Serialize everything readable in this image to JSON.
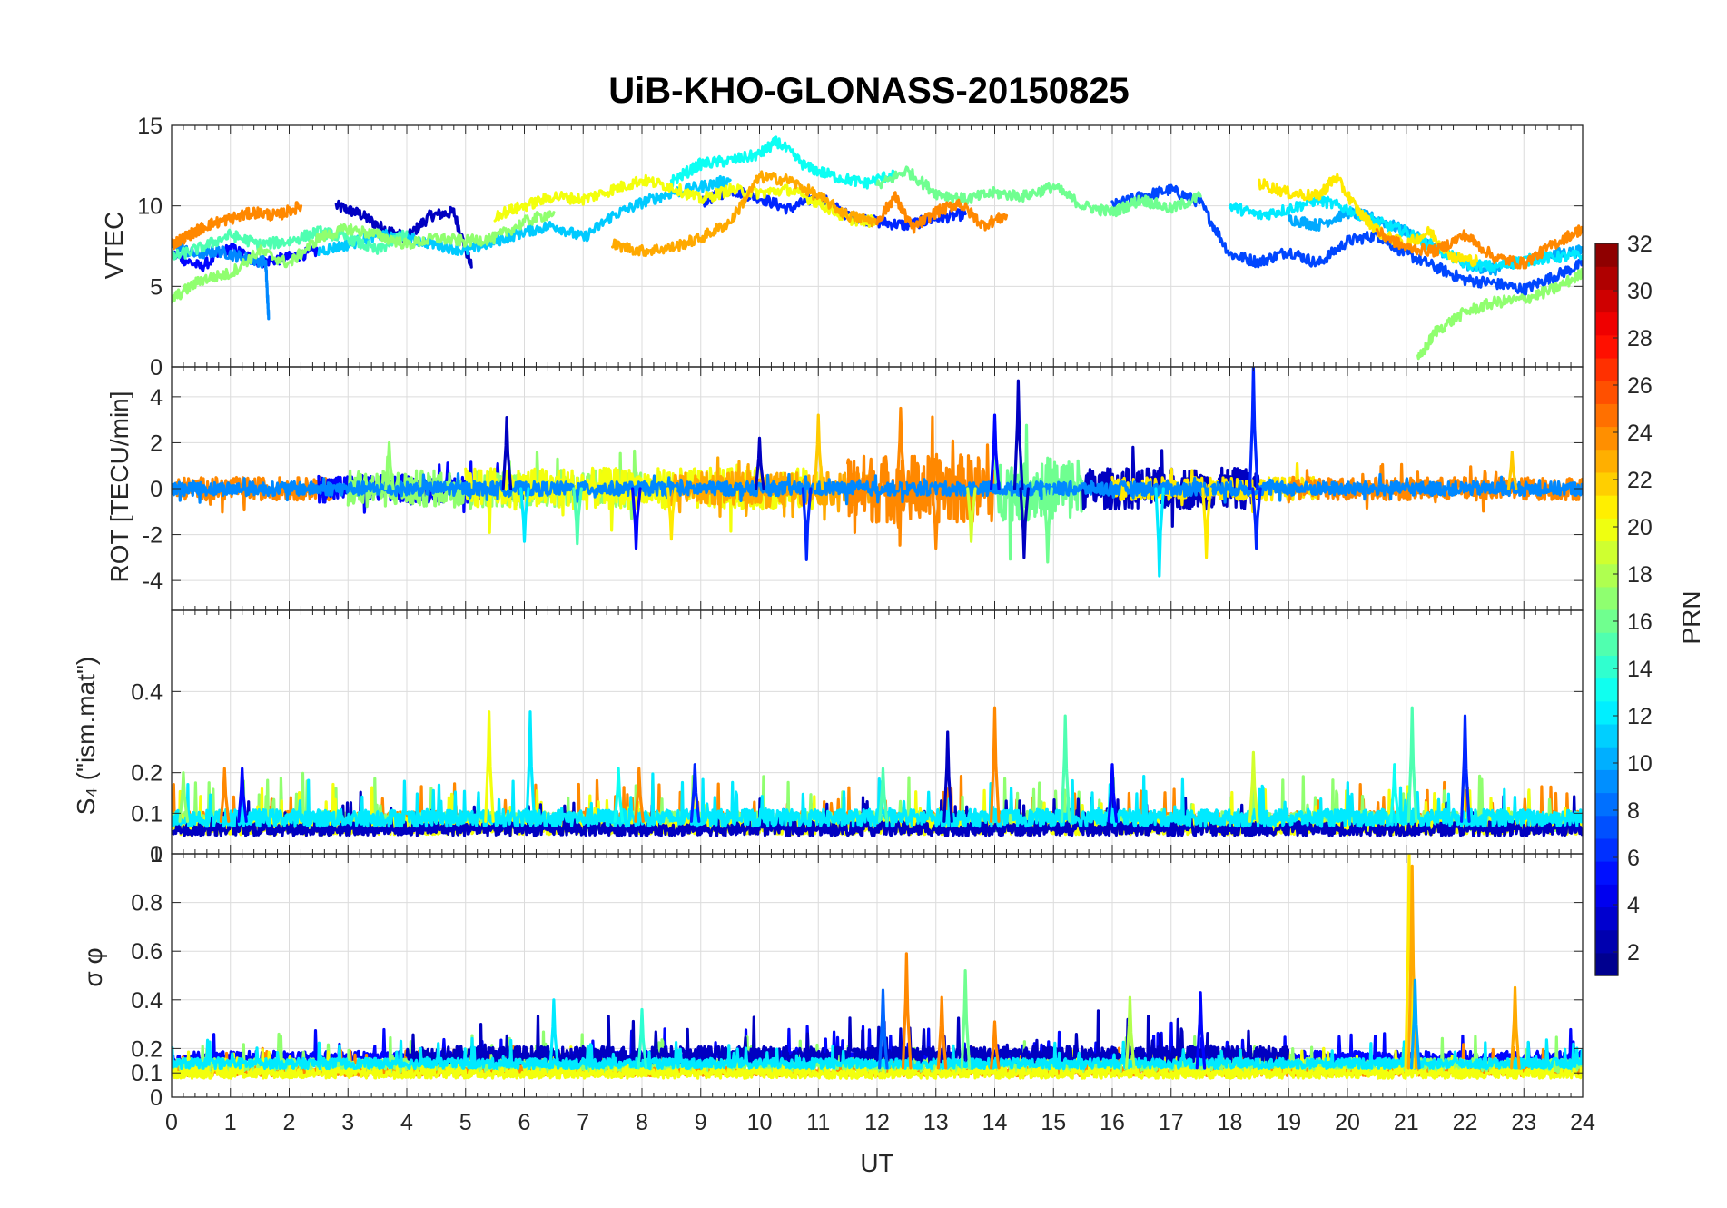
{
  "chart_data": {
    "type": "line",
    "title": "UiB-KHO-GLONASS-20150825",
    "xlabel": "UT",
    "xlim": [
      0,
      24
    ],
    "xticks": [
      "0",
      "1",
      "2",
      "3",
      "4",
      "5",
      "6",
      "7",
      "8",
      "9",
      "10",
      "11",
      "12",
      "13",
      "14",
      "15",
      "16",
      "17",
      "18",
      "19",
      "20",
      "21",
      "22",
      "23",
      "24"
    ],
    "series_note": "Each GLONASS PRN is drawn as one coloured trace per panel, colour given by the PRN colorbar.",
    "panels": [
      {
        "name": "vtec",
        "ylabel": "VTEC",
        "ylim": [
          0,
          15
        ],
        "yticks": [
          "0",
          "5",
          "10",
          "15"
        ],
        "tracks": [
          {
            "prn": 3,
            "x": [
              2.8,
              3.2,
              3.6,
              4.0,
              4.4,
              4.8,
              5.1
            ],
            "y": [
              10,
              9.5,
              8.6,
              8.0,
              9.4,
              9.6,
              6.2
            ]
          },
          {
            "prn": 5,
            "x": [
              0,
              0.5,
              1.0,
              1.5,
              2.0,
              2.5
            ],
            "y": [
              7.0,
              6.2,
              7.4,
              6.5,
              6.8,
              7.2
            ]
          },
          {
            "prn": 6,
            "x": [
              9.0,
              9.5,
              10,
              10.5,
              11,
              11.5,
              12,
              12.5,
              13,
              13.5
            ],
            "y": [
              10.2,
              11.0,
              10.5,
              9.8,
              10.6,
              9.4,
              9.0,
              8.8,
              9.2,
              9.5
            ]
          },
          {
            "prn": 7,
            "x": [
              16,
              16.5,
              17,
              17.5,
              18,
              18.5,
              19,
              19.5,
              20,
              20.5,
              21,
              21.5,
              22,
              22.5,
              23,
              23.5,
              24
            ],
            "y": [
              10.0,
              10.6,
              11.0,
              10.2,
              7.0,
              6.5,
              7.2,
              6.4,
              7.8,
              8.2,
              7.0,
              6.2,
              5.4,
              5.2,
              4.8,
              5.6,
              6.4
            ]
          },
          {
            "prn": 9,
            "x": [
              0,
              0.4,
              0.8,
              1.2,
              1.6,
              1.65
            ],
            "y": [
              7.6,
              7.0,
              7.2,
              6.8,
              6.5,
              3.0
            ]
          },
          {
            "prn": 10,
            "x": [
              19,
              19.5,
              20,
              20.5,
              21,
              21.5,
              22,
              22.5,
              23,
              23.5,
              24
            ],
            "y": [
              9.2,
              8.8,
              9.6,
              9.2,
              8.4,
              7.4,
              6.4,
              6.0,
              6.6,
              7.0,
              7.2
            ]
          },
          {
            "prn": 11,
            "x": [
              2.5,
              3.0,
              3.5,
              4.0,
              4.5,
              5.0,
              5.5,
              6.0,
              6.5,
              7.0,
              7.5,
              8.0,
              8.5,
              9.0,
              9.5
            ],
            "y": [
              7.2,
              7.6,
              8.2,
              8.0,
              7.6,
              7.2,
              7.8,
              8.4,
              8.8,
              8.0,
              9.4,
              10.2,
              10.8,
              11.2,
              11.6
            ]
          },
          {
            "prn": 12,
            "x": [
              18,
              18.5,
              19,
              19.5,
              20,
              20.5,
              21,
              21.5,
              22,
              22.5,
              23,
              23.5,
              24
            ],
            "y": [
              10.0,
              9.4,
              9.8,
              10.4,
              9.8,
              9.0,
              8.4,
              7.4,
              6.4,
              6.2,
              6.6,
              6.8,
              6.9
            ]
          },
          {
            "prn": 13,
            "x": [
              8.5,
              9.0,
              9.5,
              10,
              10.3,
              10.8,
              11.3,
              11.8,
              12.3
            ],
            "y": [
              11.5,
              12.6,
              12.8,
              13.2,
              14.0,
              12.4,
              11.8,
              11.4,
              12.0
            ]
          },
          {
            "prn": 15,
            "x": [
              0,
              0.5,
              1.0,
              1.5,
              2.0,
              2.5,
              3.0,
              3.5,
              4.0
            ],
            "y": [
              6.8,
              7.4,
              8.2,
              7.6,
              7.8,
              8.4,
              8.0,
              7.2,
              8.4
            ]
          },
          {
            "prn": 16,
            "x": [
              12,
              12.5,
              13,
              13.5,
              14,
              14.5,
              15,
              15.5,
              16,
              16.5,
              17,
              17.5
            ],
            "y": [
              11.2,
              12.2,
              10.8,
              10.4,
              10.8,
              10.6,
              11.2,
              10.0,
              9.6,
              10.4,
              9.8,
              10.6
            ]
          },
          {
            "prn": 17,
            "x": [
              0,
              0.5,
              1.0,
              1.5,
              2.0,
              2.5,
              3.0,
              3.5,
              4.0,
              4.5,
              5.0,
              5.5,
              6.0,
              6.5
            ],
            "y": [
              4.2,
              5.4,
              5.8,
              7.2,
              6.4,
              8.0,
              8.6,
              8.2,
              7.6,
              8.0,
              7.8,
              8.0,
              9.0,
              9.6
            ]
          },
          {
            "prn": 17,
            "x": [
              21.2,
              21.5,
              22,
              22.5,
              23,
              23.5,
              24
            ],
            "y": [
              0.4,
              2.2,
              3.4,
              4.0,
              4.2,
              4.8,
              5.8
            ]
          },
          {
            "prn": 20,
            "x": [
              5.5,
              6.0,
              6.5,
              7.0,
              7.5,
              8.0,
              8.5,
              9.0,
              9.5,
              10,
              10.5,
              11,
              11.5,
              12
            ],
            "y": [
              9.4,
              10.0,
              10.6,
              10.4,
              11.0,
              11.6,
              11.2,
              10.4,
              11.0,
              10.8,
              11.0,
              10.2,
              9.2,
              9.0
            ]
          },
          {
            "prn": 21,
            "x": [
              18.5,
              19,
              19.5,
              19.8,
              20.2,
              20.6,
              21,
              21.4,
              21.8,
              22.2
            ],
            "y": [
              11.4,
              10.8,
              10.6,
              11.8,
              9.6,
              8.2,
              7.6,
              8.4,
              6.8,
              6.6
            ]
          },
          {
            "prn": 23,
            "x": [
              7.5,
              8.0,
              8.5,
              9.0,
              9.5,
              10,
              10.5,
              11,
              11.5,
              12
            ],
            "y": [
              7.6,
              7.2,
              7.4,
              8.0,
              9.0,
              11.8,
              11.6,
              10.6,
              9.4,
              9.0
            ]
          },
          {
            "prn": 24,
            "x": [
              0,
              0.3,
              0.6,
              1.0,
              1.4,
              1.8,
              2.2
            ],
            "y": [
              7.6,
              8.2,
              8.8,
              9.2,
              9.6,
              9.4,
              10.0
            ]
          },
          {
            "prn": 24,
            "x": [
              12,
              12.3,
              12.6,
              13,
              13.4,
              13.8,
              14.2
            ],
            "y": [
              9.0,
              10.6,
              8.6,
              9.6,
              10.2,
              8.8,
              9.4
            ]
          },
          {
            "prn": 24,
            "x": [
              20.5,
              21,
              21.5,
              22,
              22.5,
              23,
              23.5,
              24
            ],
            "y": [
              8.4,
              7.4,
              7.2,
              8.2,
              6.8,
              6.4,
              7.6,
              8.6
            ]
          }
        ]
      },
      {
        "name": "rot",
        "ylabel": "ROT [TECU/min]",
        "ylim": [
          -5.3,
          5.3
        ],
        "yticks": [
          "-4",
          "-2",
          "0",
          "2",
          "4"
        ],
        "spikes": [
          {
            "prn": 3,
            "x": 5.7,
            "y": 3.1
          },
          {
            "prn": 3,
            "x": 10.0,
            "y": 2.2
          },
          {
            "prn": 6,
            "x": 10.8,
            "y": -3.1
          },
          {
            "prn": 5,
            "x": 7.9,
            "y": -2.6
          },
          {
            "prn": 12,
            "x": 6.0,
            "y": -2.3
          },
          {
            "prn": 15,
            "x": 6.9,
            "y": -2.4
          },
          {
            "prn": 17,
            "x": 3.7,
            "y": 2.0
          },
          {
            "prn": 21,
            "x": 8.5,
            "y": -2.2
          },
          {
            "prn": 22,
            "x": 11.0,
            "y": 3.2
          },
          {
            "prn": 24,
            "x": 12.4,
            "y": 3.5
          },
          {
            "prn": 24,
            "x": 13.0,
            "y": -2.6
          },
          {
            "prn": 19,
            "x": 13.6,
            "y": -2.3
          },
          {
            "prn": 3,
            "x": 14.4,
            "y": 4.7
          },
          {
            "prn": 3,
            "x": 14.5,
            "y": -3.0
          },
          {
            "prn": 16,
            "x": 14.9,
            "y": -3.2
          },
          {
            "prn": 5,
            "x": 14.0,
            "y": 3.2
          },
          {
            "prn": 12,
            "x": 16.8,
            "y": -3.8
          },
          {
            "prn": 21,
            "x": 17.6,
            "y": -3.0
          },
          {
            "prn": 6,
            "x": 18.4,
            "y": 5.3
          },
          {
            "prn": 6,
            "x": 18.45,
            "y": -2.6
          },
          {
            "prn": 22,
            "x": 22.8,
            "y": 1.6
          }
        ],
        "bands": [
          {
            "prn": 24,
            "x0": 0,
            "x1": 2.8,
            "amp": 0.5
          },
          {
            "prn": 5,
            "x0": 2.5,
            "x1": 6.0,
            "amp": 0.6
          },
          {
            "prn": 17,
            "x0": 3.0,
            "x1": 8.0,
            "amp": 0.8
          },
          {
            "prn": 20,
            "x0": 5.0,
            "x1": 11.0,
            "amp": 0.9
          },
          {
            "prn": 23,
            "x0": 8.5,
            "x1": 12.0,
            "amp": 0.7
          },
          {
            "prn": 24,
            "x0": 11.5,
            "x1": 14.0,
            "amp": 1.5
          },
          {
            "prn": 16,
            "x0": 14.0,
            "x1": 15.5,
            "amp": 1.4
          },
          {
            "prn": 3,
            "x0": 15.5,
            "x1": 18.5,
            "amp": 0.9
          },
          {
            "prn": 21,
            "x0": 16.0,
            "x1": 19.5,
            "amp": 0.5
          },
          {
            "prn": 24,
            "x0": 19.0,
            "x1": 24.0,
            "amp": 0.5
          },
          {
            "prn": 9,
            "x0": 0,
            "x1": 24.0,
            "amp": 0.3
          }
        ]
      },
      {
        "name": "s4",
        "ylabel": "S₄ (\"ism.mat\")",
        "ylim": [
          0,
          0.6
        ],
        "yticks": [
          "0",
          "0.1",
          "0.2",
          "0.4"
        ],
        "spikes": [
          {
            "prn": 17,
            "x": 0.2,
            "y": 0.2
          },
          {
            "prn": 24,
            "x": 0.9,
            "y": 0.21
          },
          {
            "prn": 5,
            "x": 1.2,
            "y": 0.21
          },
          {
            "prn": 20,
            "x": 5.4,
            "y": 0.35
          },
          {
            "prn": 12,
            "x": 6.1,
            "y": 0.35
          },
          {
            "prn": 13,
            "x": 7.6,
            "y": 0.21
          },
          {
            "prn": 24,
            "x": 7.95,
            "y": 0.21
          },
          {
            "prn": 6,
            "x": 8.9,
            "y": 0.22
          },
          {
            "prn": 15,
            "x": 12.1,
            "y": 0.21
          },
          {
            "prn": 3,
            "x": 13.2,
            "y": 0.3
          },
          {
            "prn": 24,
            "x": 14.0,
            "y": 0.36
          },
          {
            "prn": 15,
            "x": 15.2,
            "y": 0.34
          },
          {
            "prn": 5,
            "x": 16.0,
            "y": 0.22
          },
          {
            "prn": 19,
            "x": 18.4,
            "y": 0.25
          },
          {
            "prn": 15,
            "x": 21.1,
            "y": 0.36
          },
          {
            "prn": 6,
            "x": 22.0,
            "y": 0.34
          },
          {
            "prn": 13,
            "x": 20.8,
            "y": 0.22
          }
        ],
        "bands": [
          {
            "prn": 24,
            "x0": 0,
            "x1": 24,
            "base": 0.075,
            "amp": 0.03
          },
          {
            "prn": 17,
            "x0": 0,
            "x1": 24,
            "base": 0.07,
            "amp": 0.035
          },
          {
            "prn": 20,
            "x0": 0,
            "x1": 24,
            "base": 0.06,
            "amp": 0.03
          },
          {
            "prn": 3,
            "x0": 0,
            "x1": 24,
            "base": 0.055,
            "amp": 0.025
          },
          {
            "prn": 12,
            "x0": 0,
            "x1": 24,
            "base": 0.08,
            "amp": 0.03
          }
        ]
      },
      {
        "name": "sigma-phi",
        "ylabel": "σ φ",
        "ylim": [
          0,
          1
        ],
        "yticks": [
          "0",
          "0.1",
          "0.2",
          "0.4",
          "0.6",
          "0.8",
          "1"
        ],
        "spikes": [
          {
            "prn": 12,
            "x": 6.5,
            "y": 0.4
          },
          {
            "prn": 14,
            "x": 8.0,
            "y": 0.36
          },
          {
            "prn": 8,
            "x": 12.1,
            "y": 0.44
          },
          {
            "prn": 24,
            "x": 12.5,
            "y": 0.59
          },
          {
            "prn": 24,
            "x": 13.1,
            "y": 0.41
          },
          {
            "prn": 16,
            "x": 13.5,
            "y": 0.52
          },
          {
            "prn": 24,
            "x": 14.0,
            "y": 0.31
          },
          {
            "prn": 18,
            "x": 16.3,
            "y": 0.41
          },
          {
            "prn": 5,
            "x": 17.5,
            "y": 0.43
          },
          {
            "prn": 21,
            "x": 21.05,
            "y": 1.0
          },
          {
            "prn": 23,
            "x": 21.1,
            "y": 0.95
          },
          {
            "prn": 10,
            "x": 21.15,
            "y": 0.48
          },
          {
            "prn": 23,
            "x": 22.85,
            "y": 0.45
          }
        ],
        "bands": [
          {
            "prn": 5,
            "x0": 0,
            "x1": 24,
            "base": 0.15,
            "amp": 0.04
          },
          {
            "prn": 24,
            "x0": 0,
            "x1": 24,
            "base": 0.1,
            "amp": 0.03
          },
          {
            "prn": 17,
            "x0": 0,
            "x1": 24,
            "base": 0.12,
            "amp": 0.04
          },
          {
            "prn": 20,
            "x0": 0,
            "x1": 24,
            "base": 0.09,
            "amp": 0.03
          },
          {
            "prn": 3,
            "x0": 4,
            "x1": 19,
            "base": 0.16,
            "amp": 0.05
          },
          {
            "prn": 12,
            "x0": 0,
            "x1": 24,
            "base": 0.13,
            "amp": 0.03
          }
        ]
      }
    ],
    "colorbar": {
      "label": "PRN",
      "range": [
        1,
        32
      ],
      "ticks": [
        "2",
        "4",
        "6",
        "8",
        "10",
        "12",
        "14",
        "16",
        "18",
        "20",
        "22",
        "24",
        "26",
        "28",
        "30",
        "32"
      ],
      "colormap": "jet"
    }
  }
}
